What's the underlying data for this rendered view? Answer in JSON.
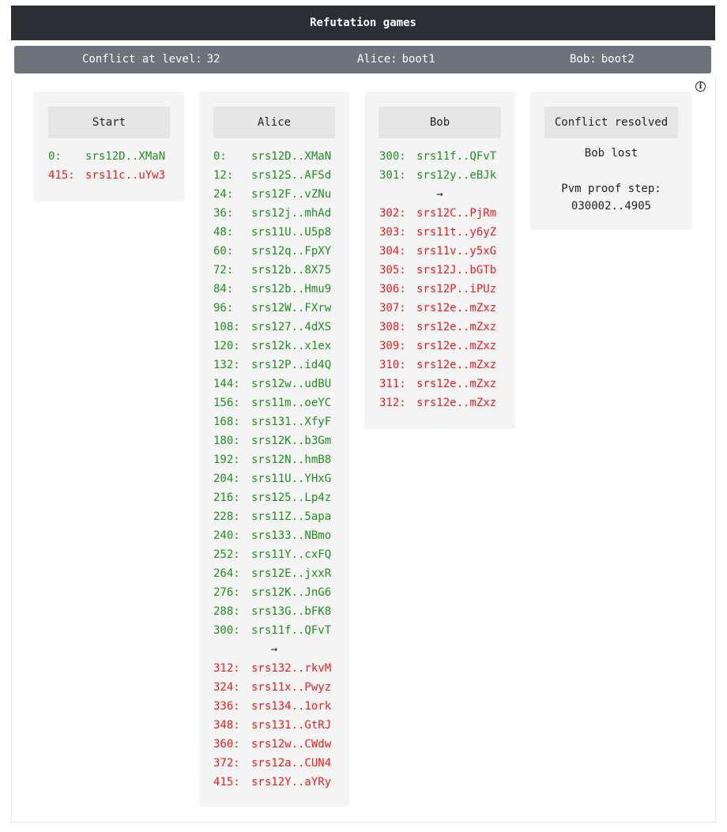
{
  "header": {
    "title": "Refutation games"
  },
  "status": {
    "conflict_label": "Conflict at level:",
    "conflict_level": "32",
    "alice_label": "Alice:",
    "alice_value": "boot1",
    "bob_label": "Bob:",
    "bob_value": "boot2"
  },
  "info_icon": "info-icon",
  "colors": {
    "valid": "#1f8f1f",
    "invalid": "#ee1c1c",
    "header_bg": "#2b2f33",
    "status_bg": "#6c737b"
  },
  "start": {
    "title": "Start",
    "rows": [
      {
        "num": "0:",
        "hash": "srs12D..XMaN",
        "status": "green"
      },
      {
        "num": "415:",
        "hash": "srs11c..uYw3",
        "status": "red"
      }
    ]
  },
  "alice": {
    "title": "Alice",
    "arrow": "→",
    "rows_before": [
      {
        "num": "0:",
        "hash": "srs12D..XMaN"
      },
      {
        "num": "12:",
        "hash": "srs12S..AFSd"
      },
      {
        "num": "24:",
        "hash": "srs12F..vZNu"
      },
      {
        "num": "36:",
        "hash": "srs12j..mhAd"
      },
      {
        "num": "48:",
        "hash": "srs11U..U5p8"
      },
      {
        "num": "60:",
        "hash": "srs12q..FpXY"
      },
      {
        "num": "72:",
        "hash": "srs12b..8X75"
      },
      {
        "num": "84:",
        "hash": "srs12b..Hmu9"
      },
      {
        "num": "96:",
        "hash": "srs12W..FXrw"
      },
      {
        "num": "108:",
        "hash": "srs127..4dXS"
      },
      {
        "num": "120:",
        "hash": "srs12k..x1ex"
      },
      {
        "num": "132:",
        "hash": "srs12P..id4Q"
      },
      {
        "num": "144:",
        "hash": "srs12w..udBU"
      },
      {
        "num": "156:",
        "hash": "srs11m..oeYC"
      },
      {
        "num": "168:",
        "hash": "srs131..XfyF"
      },
      {
        "num": "180:",
        "hash": "srs12K..b3Gm"
      },
      {
        "num": "192:",
        "hash": "srs12N..hmB8"
      },
      {
        "num": "204:",
        "hash": "srs11U..YHxG"
      },
      {
        "num": "216:",
        "hash": "srs125..Lp4z"
      },
      {
        "num": "228:",
        "hash": "srs11Z..5apa"
      },
      {
        "num": "240:",
        "hash": "srs133..NBmo"
      },
      {
        "num": "252:",
        "hash": "srs11Y..cxFQ"
      },
      {
        "num": "264:",
        "hash": "srs12E..jxxR"
      },
      {
        "num": "276:",
        "hash": "srs12K..JnG6"
      },
      {
        "num": "288:",
        "hash": "srs13G..bFK8"
      },
      {
        "num": "300:",
        "hash": "srs11f..QFvT"
      }
    ],
    "rows_after": [
      {
        "num": "312:",
        "hash": "srs132..rkvM"
      },
      {
        "num": "324:",
        "hash": "srs11x..Pwyz"
      },
      {
        "num": "336:",
        "hash": "srs134..1ork"
      },
      {
        "num": "348:",
        "hash": "srs131..GtRJ"
      },
      {
        "num": "360:",
        "hash": "srs12w..CWdw"
      },
      {
        "num": "372:",
        "hash": "srs12a..CUN4"
      },
      {
        "num": "415:",
        "hash": "srs12Y..aYRy"
      }
    ]
  },
  "bob": {
    "title": "Bob",
    "arrow": "→",
    "rows_before": [
      {
        "num": "300:",
        "hash": "srs11f..QFvT"
      },
      {
        "num": "301:",
        "hash": "srs12y..eBJk"
      }
    ],
    "rows_after": [
      {
        "num": "302:",
        "hash": "srs12C..PjRm"
      },
      {
        "num": "303:",
        "hash": "srs11t..y6yZ"
      },
      {
        "num": "304:",
        "hash": "srs11v..y5xG"
      },
      {
        "num": "305:",
        "hash": "srs12J..bGTb"
      },
      {
        "num": "306:",
        "hash": "srs12P..iPUz"
      },
      {
        "num": "307:",
        "hash": "srs12e..mZxz"
      },
      {
        "num": "308:",
        "hash": "srs12e..mZxz"
      },
      {
        "num": "309:",
        "hash": "srs12e..mZxz"
      },
      {
        "num": "310:",
        "hash": "srs12e..mZxz"
      },
      {
        "num": "311:",
        "hash": "srs12e..mZxz"
      },
      {
        "num": "312:",
        "hash": "srs12e..mZxz"
      }
    ]
  },
  "resolved": {
    "title": "Conflict resolved",
    "result": "Bob lost",
    "proof_label": "Pvm proof step:",
    "proof_value": "030002..4905"
  }
}
